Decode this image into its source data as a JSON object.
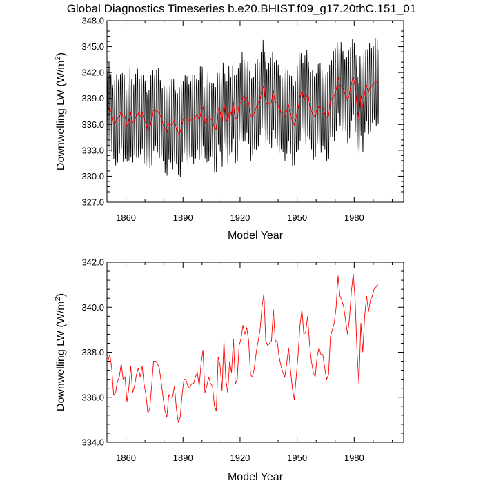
{
  "title": "Global Diagnostics Timeseries b.e20.BHIST.f09_g17.20thC.151_01",
  "colors": {
    "monthly": "#000000",
    "annual": "#ff0000"
  },
  "chart_data": [
    {
      "type": "line",
      "name": "monthly-and-annual",
      "ylabel_main": "Downwelling LW (W/m",
      "ylabel_sup": "2",
      "ylabel_tail": ")",
      "xlabel": "Model Year",
      "xlim": [
        1850,
        2006
      ],
      "ylim": [
        327.0,
        348.0
      ],
      "xticks": [
        1860,
        1890,
        1920,
        1950,
        1980
      ],
      "yticks": [
        "327.0",
        "330.0",
        "333.0",
        "336.0",
        "339.0",
        "342.0",
        "345.0",
        "348.0"
      ],
      "monthly_seasonal_amplitude": 4.8,
      "series": [
        {
          "name": "monthly",
          "color": "#000000",
          "source": "annual mean with seasonal cycle"
        },
        {
          "name": "annual",
          "color": "#ff0000",
          "source": "annual"
        }
      ]
    },
    {
      "type": "line",
      "name": "annual",
      "ylabel_main": "Downwelling LW (W/m",
      "ylabel_sup": "2",
      "ylabel_tail": ")",
      "xlabel": "Model Year",
      "xlim": [
        1850,
        2006
      ],
      "ylim": [
        334.0,
        342.0
      ],
      "xticks": [
        1860,
        1890,
        1920,
        1950,
        1980
      ],
      "yticks": [
        "334.0",
        "336.0",
        "338.0",
        "340.0",
        "342.0"
      ],
      "series": [
        {
          "name": "annual",
          "color": "#ff0000"
        }
      ]
    }
  ],
  "annual_series": {
    "x_start": 1850,
    "values": [
      337.6,
      337.9,
      337.3,
      336.1,
      336.2,
      336.7,
      336.9,
      337.5,
      336.8,
      336.9,
      335.8,
      336.4,
      337.4,
      336.2,
      336.5,
      337.0,
      337.3,
      336.9,
      337.4,
      336.6,
      336.1,
      335.3,
      335.5,
      336.5,
      337.6,
      337.6,
      337.5,
      337.3,
      336.7,
      336.0,
      335.4,
      335.1,
      336.1,
      336.0,
      336.0,
      336.5,
      335.5,
      334.9,
      335.1,
      336.1,
      336.8,
      336.8,
      336.5,
      336.4,
      336.6,
      336.6,
      336.9,
      337.1,
      336.5,
      337.5,
      338.1,
      336.2,
      336.5,
      336.9,
      336.6,
      336.5,
      335.6,
      335.4,
      337.8,
      337.4,
      336.3,
      338.5,
      336.8,
      336.2,
      337.6,
      337.1,
      338.6,
      336.6,
      336.8,
      338.3,
      338.6,
      339.2,
      338.8,
      339.1,
      338.5,
      337.0,
      336.9,
      337.3,
      338.0,
      338.5,
      339.0,
      340.0,
      340.6,
      338.5,
      338.3,
      338.4,
      338.5,
      339.9,
      338.5,
      338.5,
      337.8,
      337.4,
      337.1,
      336.9,
      337.5,
      338.2,
      337.2,
      336.4,
      335.9,
      336.9,
      337.9,
      339.2,
      339.9,
      338.8,
      338.9,
      339.6,
      338.4,
      337.6,
      337.1,
      336.9,
      337.8,
      338.2,
      337.9,
      337.9,
      337.3,
      336.8,
      337.0,
      338.7,
      339.0,
      339.3,
      340.0,
      341.4,
      340.5,
      340.3,
      340.0,
      339.4,
      338.8,
      339.5,
      340.7,
      341.5,
      340.3,
      338.0,
      336.6,
      339.3,
      338.0,
      339.6,
      340.5,
      339.8,
      340.3,
      340.5,
      340.8,
      340.9,
      341.0
    ]
  }
}
